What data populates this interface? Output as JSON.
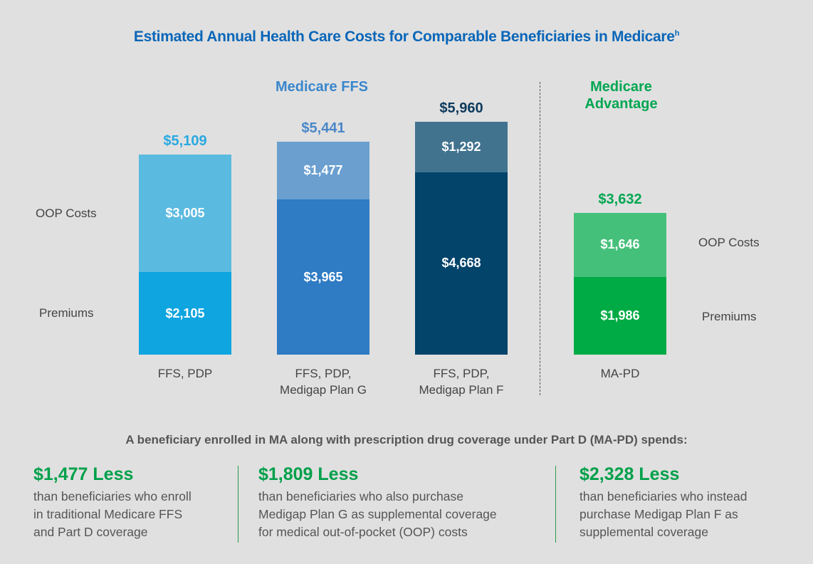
{
  "chart_data": {
    "type": "bar",
    "stacked": true,
    "title": "Estimated Annual Health Care Costs for Comparable Beneficiaries in Medicare",
    "title_superscript": "h",
    "groups": [
      {
        "label": "Medicare FFS",
        "color": "#3a86cc"
      },
      {
        "label": "Medicare Advantage",
        "color": "#00a651"
      }
    ],
    "categories": [
      "FFS, PDP",
      "FFS, PDP, Medigap Plan G",
      "FFS, PDP, Medigap Plan F",
      "MA-PD"
    ],
    "category_lines": [
      [
        "FFS, PDP"
      ],
      [
        "FFS, PDP,",
        "Medigap Plan G"
      ],
      [
        "FFS, PDP,",
        "Medigap Plan F"
      ],
      [
        "MA-PD"
      ]
    ],
    "series": [
      {
        "name": "Premiums",
        "values": [
          2105,
          3965,
          4668,
          1986
        ],
        "labels": [
          "$2,105",
          "$3,965",
          "$4,668",
          "$1,986"
        ],
        "colors": [
          "#0ea5e0",
          "#2f7bc4",
          "#03446b",
          "#00ab45"
        ]
      },
      {
        "name": "OOP Costs",
        "values": [
          3005,
          1477,
          1292,
          1646
        ],
        "labels": [
          "$3,005",
          "$1,477",
          "$1,292",
          "$1,646"
        ],
        "colors": [
          "#5bbae0",
          "#6a9fd0",
          "#41738f",
          "#45c07a"
        ]
      }
    ],
    "totals": [
      "$5,109",
      "$5,441",
      "$5,960",
      "$3,632"
    ],
    "total_values": [
      5109,
      5441,
      5960,
      3632
    ],
    "total_colors": [
      "#29a9e0",
      "#4a87c8",
      "#0d3a5c",
      "#00a651"
    ],
    "side_labels_left": {
      "oop": "OOP Costs",
      "premiums": "Premiums"
    },
    "side_labels_right": {
      "oop": "OOP Costs",
      "premiums": "Premiums"
    },
    "grid": false
  },
  "summary": {
    "heading": "A beneficiary enrolled in MA along with prescription drug coverage under Part D (MA-PD) spends:",
    "items": [
      {
        "amount": "$1,477 Less",
        "lines": [
          "than beneficiaries who enroll",
          "in traditional Medicare FFS",
          "and Part D coverage"
        ]
      },
      {
        "amount": "$1,809 Less",
        "lines": [
          "than beneficiaries who also purchase",
          "Medigap Plan G as supplemental coverage",
          "for medical out-of-pocket (OOP) costs"
        ]
      },
      {
        "amount": "$2,328 Less",
        "lines": [
          "than beneficiaries who instead",
          "purchase Medigap Plan F as",
          "supplemental coverage"
        ]
      }
    ]
  }
}
